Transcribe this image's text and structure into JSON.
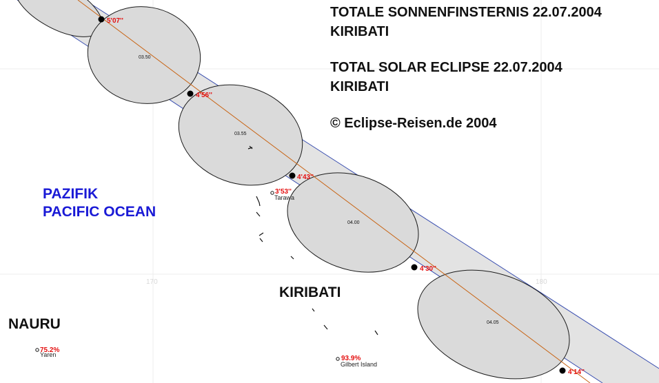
{
  "title": {
    "de_line1": "TOTALE SONNENFINSTERNIS 22.07.2004",
    "de_line2": "KIRIBATI",
    "en_line1": "TOTAL SOLAR ECLIPSE 22.07.2004",
    "en_line2": "KIRIBATI",
    "copyright": "© Eclipse-Reisen.de 2004"
  },
  "ocean": {
    "line1": "PAZIFIK",
    "line2": "PACIFIC OCEAN"
  },
  "countries": {
    "kiribati": "KIRIBATI",
    "nauru": "NAURU"
  },
  "grid": {
    "lon_170": "170",
    "lon_180": "180"
  },
  "durations": [
    "5'07''",
    "4'56''",
    "4'43''",
    "4'30''",
    "4'14''"
  ],
  "shadow_times": [
    "03.50",
    "03.55",
    "04.00",
    "04.05"
  ],
  "places": [
    {
      "name": "Tarawa",
      "duration": "3'53''"
    },
    {
      "name": "Yaren",
      "coverage": "75.2%"
    },
    {
      "name": "Gilbert Island",
      "coverage": "93.9%"
    }
  ],
  "colors": {
    "path_fill": "#e3e3e3",
    "path_edge": "#3a4fb0",
    "central_line": "#c86414",
    "duration_text": "#e41010",
    "ocean_text": "#1a1ad6"
  }
}
